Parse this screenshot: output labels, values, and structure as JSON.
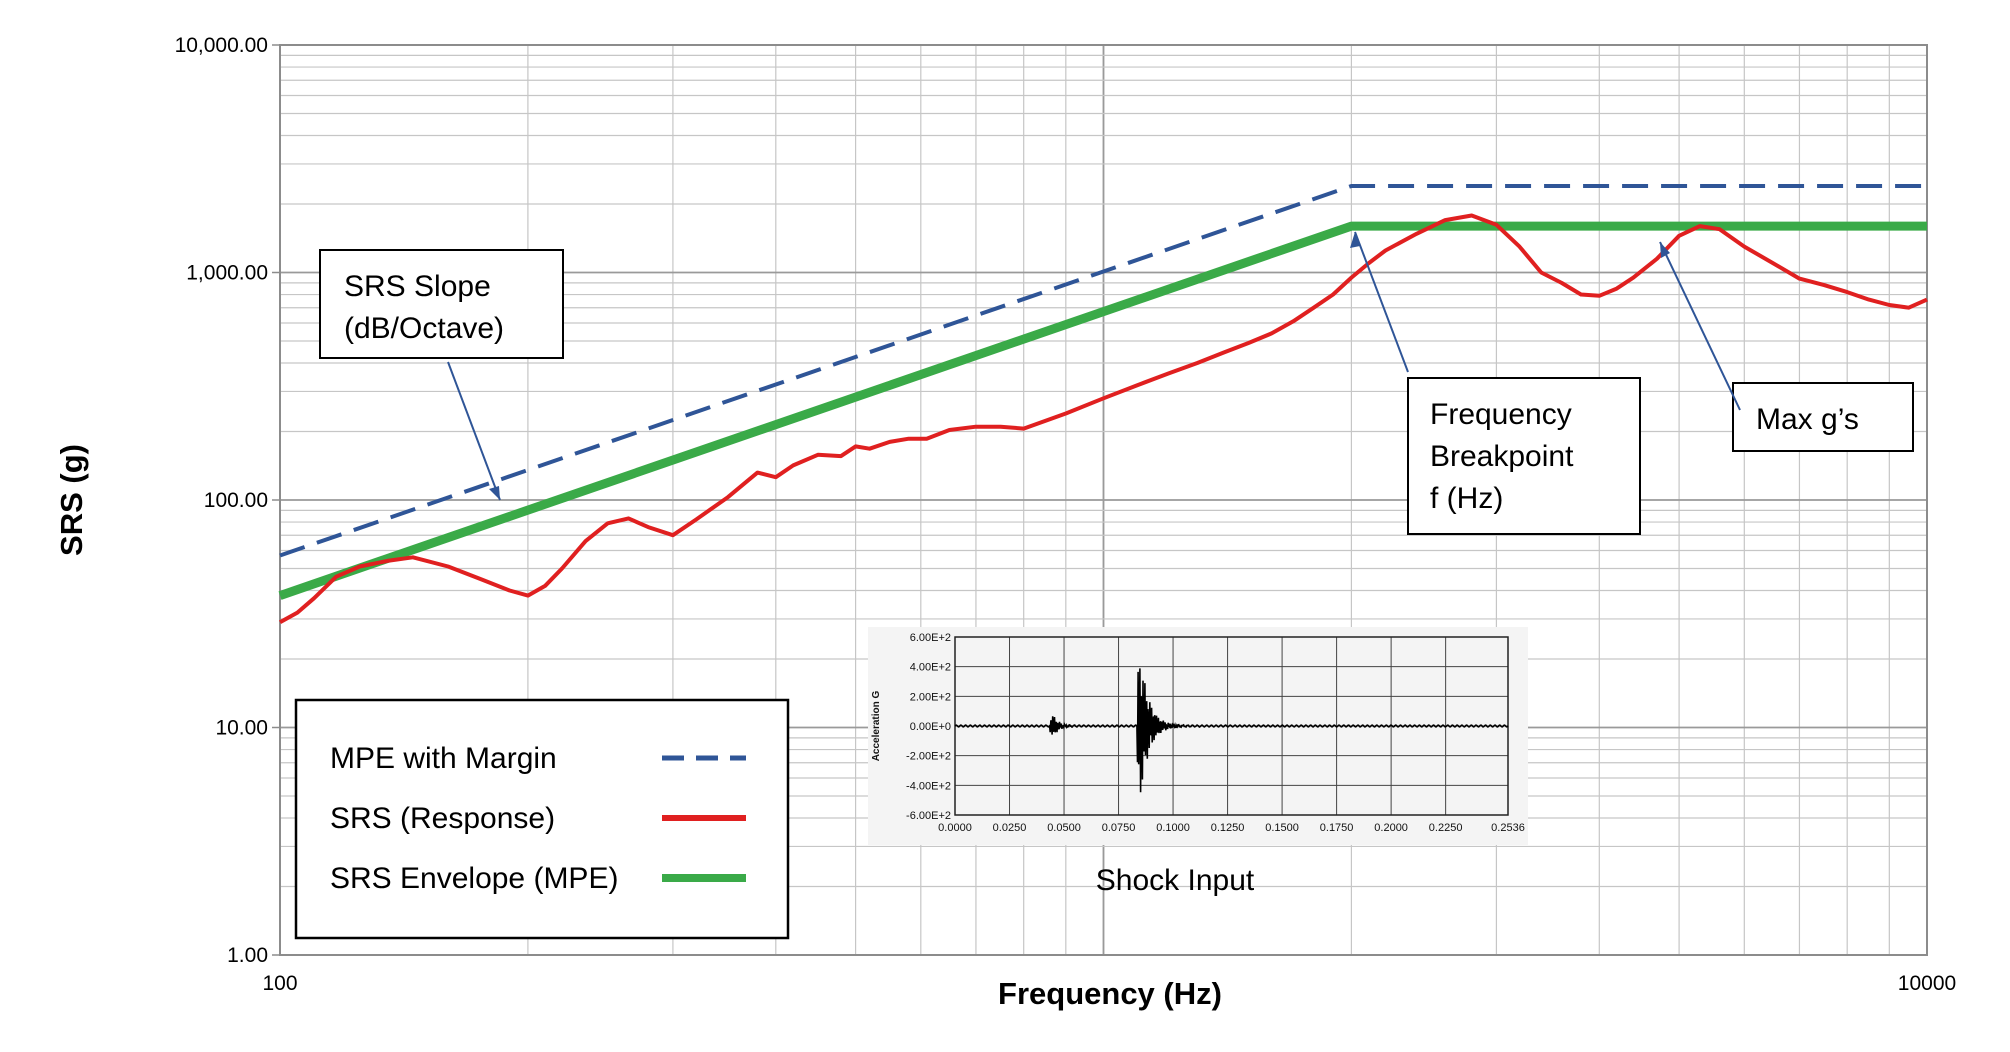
{
  "chart_data": {
    "type": "line",
    "xlabel": "Frequency (Hz)",
    "ylabel": "SRS (g)",
    "x_scale": "log",
    "y_scale": "log",
    "xlim": [
      100,
      10000
    ],
    "ylim": [
      1,
      10000
    ],
    "x_ticks": [
      "100",
      "10000"
    ],
    "y_ticks": [
      "1.00",
      "10.00",
      "100.00",
      "1,000.00",
      "10,000.00"
    ],
    "grid": true,
    "legend_position": "bottom-left",
    "series": [
      {
        "name": "MPE with Margin",
        "color": "#2f5597",
        "style": "dashed",
        "x": [
          100,
          2000,
          10000
        ],
        "y": [
          57,
          2400,
          2400
        ]
      },
      {
        "name": "SRS (Response)",
        "color": "#e02020",
        "style": "solid",
        "x": [
          100,
          105,
          110,
          117,
          125,
          135,
          145,
          160,
          175,
          190,
          200,
          210,
          220,
          235,
          250,
          265,
          280,
          300,
          320,
          350,
          380,
          400,
          420,
          450,
          480,
          500,
          520,
          550,
          580,
          610,
          650,
          700,
          750,
          800,
          900,
          1000,
          1100,
          1200,
          1300,
          1400,
          1500,
          1600,
          1700,
          1800,
          1900,
          2000,
          2100,
          2200,
          2400,
          2600,
          2800,
          3000,
          3200,
          3400,
          3600,
          3800,
          4000,
          4200,
          4400,
          4700,
          5000,
          5300,
          5600,
          6000,
          6500,
          7000,
          7500,
          8000,
          8500,
          9000,
          9500,
          10000
        ],
        "y": [
          29,
          32,
          37,
          46,
          51,
          54,
          56,
          51,
          45,
          40,
          38,
          42,
          50,
          66,
          79,
          83,
          76,
          70,
          82,
          103,
          132,
          126,
          142,
          158,
          156,
          172,
          168,
          180,
          186,
          186,
          203,
          210,
          210,
          206,
          240,
          280,
          320,
          360,
          400,
          445,
          490,
          540,
          610,
          700,
          800,
          950,
          1100,
          1250,
          1480,
          1700,
          1780,
          1620,
          1300,
          1000,
          900,
          800,
          790,
          850,
          950,
          1150,
          1450,
          1600,
          1550,
          1300,
          1100,
          940,
          880,
          820,
          760,
          720,
          700,
          760
        ]
      },
      {
        "name": "SRS Envelope (MPE)",
        "color": "#3aaa48",
        "style": "solid",
        "x": [
          100,
          2000,
          10000
        ],
        "y": [
          38,
          1600,
          1600
        ]
      }
    ],
    "annotations": [
      {
        "lines": [
          "SRS Slope",
          "(dB/Octave)"
        ]
      },
      {
        "lines": [
          "Frequency",
          "Breakpoint",
          "f (Hz)"
        ]
      },
      {
        "lines": [
          "Max g’s"
        ]
      }
    ],
    "inset": {
      "caption": "Shock Input",
      "ylabel": "Acceleration G",
      "y_ticks": [
        "6.00E+2",
        "4.00E+2",
        "2.00E+2",
        "0.00E+0",
        "-2.00E+2",
        "-4.00E+2",
        "-6.00E+2"
      ],
      "x_ticks": [
        "0.0000",
        "0.0250",
        "0.0500",
        "0.0750",
        "0.1000",
        "0.1250",
        "0.1500",
        "0.1750",
        "0.2000",
        "0.2250",
        "0.2536"
      ],
      "xlim": [
        0,
        0.2536
      ],
      "ylim": [
        -600,
        600
      ],
      "bursts": [
        {
          "t": 0.045,
          "amp": 80
        },
        {
          "t": 0.085,
          "amp": 480
        }
      ]
    }
  }
}
